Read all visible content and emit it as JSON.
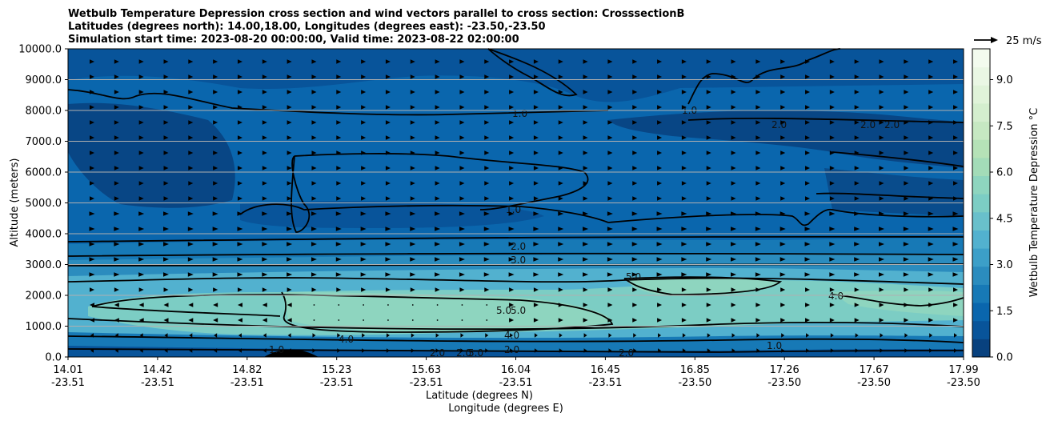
{
  "chart_data": {
    "type": "contour",
    "title_lines": [
      "Wetbulb Temperature Depression cross section and wind vectors parallel to cross section: CrosssectionB",
      "Latitudes (degrees north): 14.00,18.00, Longitudes (degrees east): -23.50,-23.50",
      "Simulation start time: 2023-08-20 00:00:00, Valid time: 2023-08-22 02:00:00"
    ],
    "ylabel": "Altitude (meters)",
    "xlabel_lat": "Latitude (degrees N)",
    "xlabel_lon": "Longitude (degrees E)",
    "ylim": [
      0,
      10000
    ],
    "y_ticks": [
      "0.0",
      "1000.0",
      "2000.0",
      "3000.0",
      "4000.0",
      "5000.0",
      "6000.0",
      "7000.0",
      "8000.0",
      "9000.0",
      "10000.0"
    ],
    "x_ticks": [
      {
        "lat": "14.01",
        "lon": "-23.51"
      },
      {
        "lat": "14.42",
        "lon": "-23.51"
      },
      {
        "lat": "14.82",
        "lon": "-23.51"
      },
      {
        "lat": "15.23",
        "lon": "-23.51"
      },
      {
        "lat": "15.63",
        "lon": "-23.51"
      },
      {
        "lat": "16.04",
        "lon": "-23.51"
      },
      {
        "lat": "16.45",
        "lon": "-23.51"
      },
      {
        "lat": "16.85",
        "lon": "-23.50"
      },
      {
        "lat": "17.26",
        "lon": "-23.50"
      },
      {
        "lat": "17.67",
        "lon": "-23.50"
      },
      {
        "lat": "17.99",
        "lon": "-23.50"
      }
    ],
    "colorbar": {
      "label": "Wetbulb Temperature Depression °C",
      "range": [
        0,
        10
      ],
      "ticks": [
        "0.0",
        "1.5",
        "3.0",
        "4.5",
        "6.0",
        "7.5",
        "9.0"
      ],
      "colors": [
        "#08417e",
        "#08549a",
        "#0a66ad",
        "#1779b6",
        "#2b8cbe",
        "#3c9fc8",
        "#52b1cf",
        "#69c0cb",
        "#7ccdc4",
        "#8ed5bf",
        "#a3dcb8",
        "#b5e2b7",
        "#c6e8c2",
        "#d4eece",
        "#e0f3d9",
        "#eaf7e4",
        "#f3fbee"
      ]
    },
    "quiver_key": {
      "label": "25 m/s"
    },
    "contour_labels": [
      "1.0",
      "1.0",
      "1.0",
      "2.0",
      "2.0",
      "2.0",
      "2.0",
      "3.0",
      "4.0",
      "5.0",
      "5.0",
      "5.0",
      "4.0",
      "1.0",
      "2.0",
      "2.0",
      "1.0",
      "2.0",
      "2.0",
      "5.0",
      "4.0"
    ]
  }
}
